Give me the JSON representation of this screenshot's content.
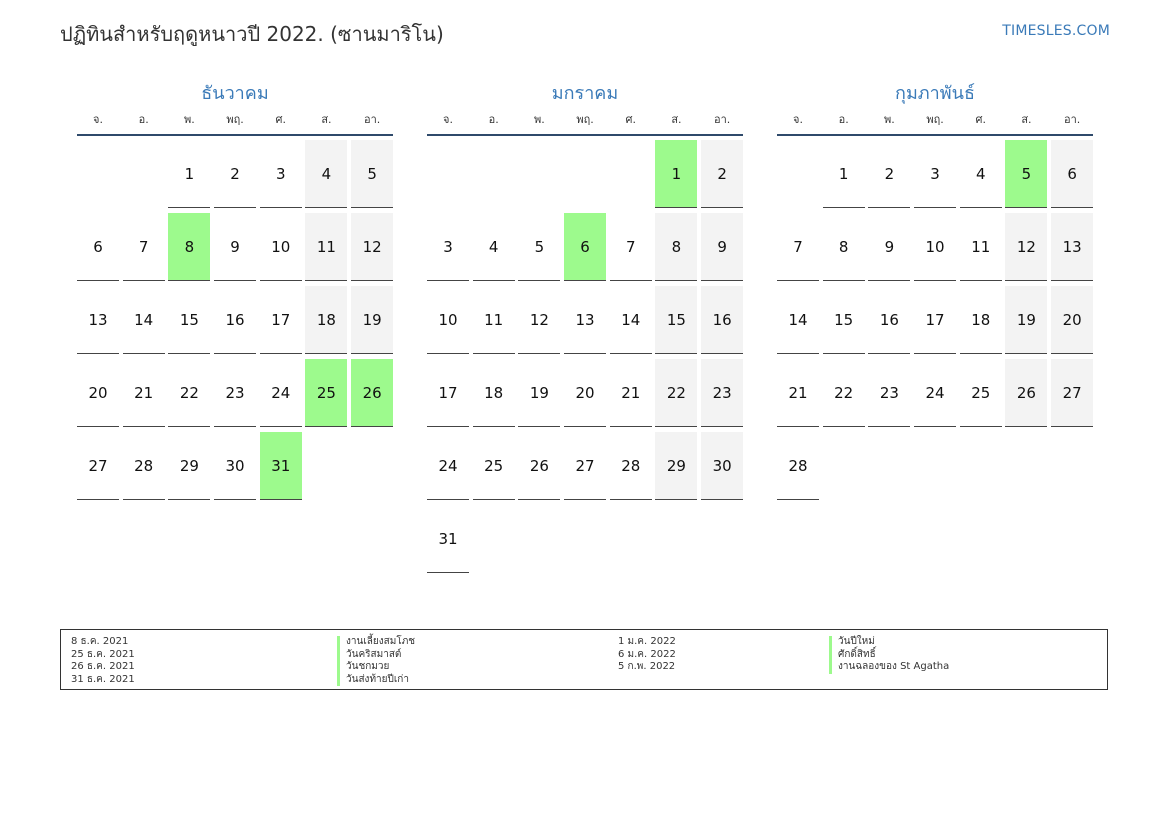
{
  "header": {
    "title": "ปฏิทินสำหรับฤดูหนาวปี 2022. (ซานมาริโน)",
    "brand": "TIMESLES.COM"
  },
  "weekdays": [
    "จ.",
    "อ.",
    "พ.",
    "พฤ.",
    "ศ.",
    "ส.",
    "อา."
  ],
  "months": [
    {
      "name": "ธันวาคม",
      "start_offset": 2,
      "days": [
        "1",
        "2",
        "3",
        "4",
        "5",
        "6",
        "7",
        "8",
        "9",
        "10",
        "11",
        "12",
        "13",
        "14",
        "15",
        "16",
        "17",
        "18",
        "19",
        "20",
        "21",
        "22",
        "23",
        "24",
        "25",
        "26",
        "27",
        "28",
        "29",
        "30",
        "31"
      ],
      "holidays": [
        "8",
        "25",
        "26",
        "31"
      ]
    },
    {
      "name": "มกราคม",
      "start_offset": 5,
      "days": [
        "1",
        "2",
        "3",
        "4",
        "5",
        "6",
        "7",
        "8",
        "9",
        "10",
        "11",
        "12",
        "13",
        "14",
        "15",
        "16",
        "17",
        "18",
        "19",
        "20",
        "21",
        "22",
        "23",
        "24",
        "25",
        "26",
        "27",
        "28",
        "29",
        "30",
        "31"
      ],
      "holidays": [
        "1",
        "6"
      ]
    },
    {
      "name": "กุมภาพันธ์",
      "start_offset": 1,
      "days": [
        "1",
        "2",
        "3",
        "4",
        "5",
        "6",
        "7",
        "8",
        "9",
        "10",
        "11",
        "12",
        "13",
        "14",
        "15",
        "16",
        "17",
        "18",
        "19",
        "20",
        "21",
        "22",
        "23",
        "24",
        "25",
        "26",
        "27",
        "28"
      ],
      "holidays": [
        "5"
      ]
    }
  ],
  "legend": {
    "left": [
      {
        "date": "8 ธ.ค. 2021",
        "name": "งานเลี้ยงสมโภช"
      },
      {
        "date": "25 ธ.ค. 2021",
        "name": "วันคริสมาสต์"
      },
      {
        "date": "26 ธ.ค. 2021",
        "name": "วันชกมวย"
      },
      {
        "date": "31 ธ.ค. 2021",
        "name": "วันส่งท้ายปีเก่า"
      }
    ],
    "right": [
      {
        "date": "1 ม.ค. 2022",
        "name": "วันปีใหม่"
      },
      {
        "date": "6 ม.ค. 2022",
        "name": "ศักดิ์สิทธิ์"
      },
      {
        "date": "5 ก.พ. 2022",
        "name": "งานฉลองของ St Agatha"
      }
    ]
  },
  "colors": {
    "holiday": "#9dfa8d",
    "weekend": "#f3f3f3",
    "accent": "#3a7ab8"
  }
}
